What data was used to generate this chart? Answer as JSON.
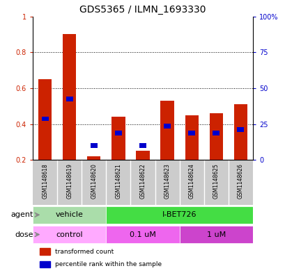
{
  "title": "GDS5365 / ILMN_1693330",
  "samples": [
    "GSM1148618",
    "GSM1148619",
    "GSM1148620",
    "GSM1148621",
    "GSM1148622",
    "GSM1148623",
    "GSM1148624",
    "GSM1148625",
    "GSM1148626"
  ],
  "red_values": [
    0.65,
    0.9,
    0.22,
    0.44,
    0.25,
    0.53,
    0.45,
    0.46,
    0.51
  ],
  "blue_values": [
    0.43,
    0.54,
    0.28,
    0.35,
    0.28,
    0.39,
    0.35,
    0.35,
    0.37
  ],
  "ylim_left": [
    0.2,
    1.0
  ],
  "ylim_right": [
    0,
    100
  ],
  "yticks_left": [
    0.2,
    0.4,
    0.6,
    0.8,
    1.0
  ],
  "ytick_labels_left": [
    "0.2",
    "0.4",
    "0.6",
    "0.8",
    "1"
  ],
  "yticks_right": [
    0,
    25,
    50,
    75,
    100
  ],
  "ytick_labels_right": [
    "0",
    "25",
    "50",
    "75",
    "100%"
  ],
  "bar_color_red": "#cc2200",
  "bar_color_blue": "#0000cc",
  "bar_width": 0.55,
  "agent_groups": [
    {
      "label": "vehicle",
      "start": 0,
      "end": 3,
      "color": "#aaddaa"
    },
    {
      "label": "I-BET726",
      "start": 3,
      "end": 9,
      "color": "#44dd44"
    }
  ],
  "dose_groups": [
    {
      "label": "control",
      "start": 0,
      "end": 3,
      "color": "#ffaaff"
    },
    {
      "label": "0.1 uM",
      "start": 3,
      "end": 6,
      "color": "#ee66ee"
    },
    {
      "label": "1 uM",
      "start": 6,
      "end": 9,
      "color": "#cc44cc"
    }
  ],
  "legend_red_label": "transformed count",
  "legend_blue_label": "percentile rank within the sample",
  "agent_label": "agent",
  "dose_label": "dose",
  "title_fontsize": 10,
  "tick_fontsize": 7,
  "label_fontsize": 8,
  "sample_fontsize": 5.5
}
